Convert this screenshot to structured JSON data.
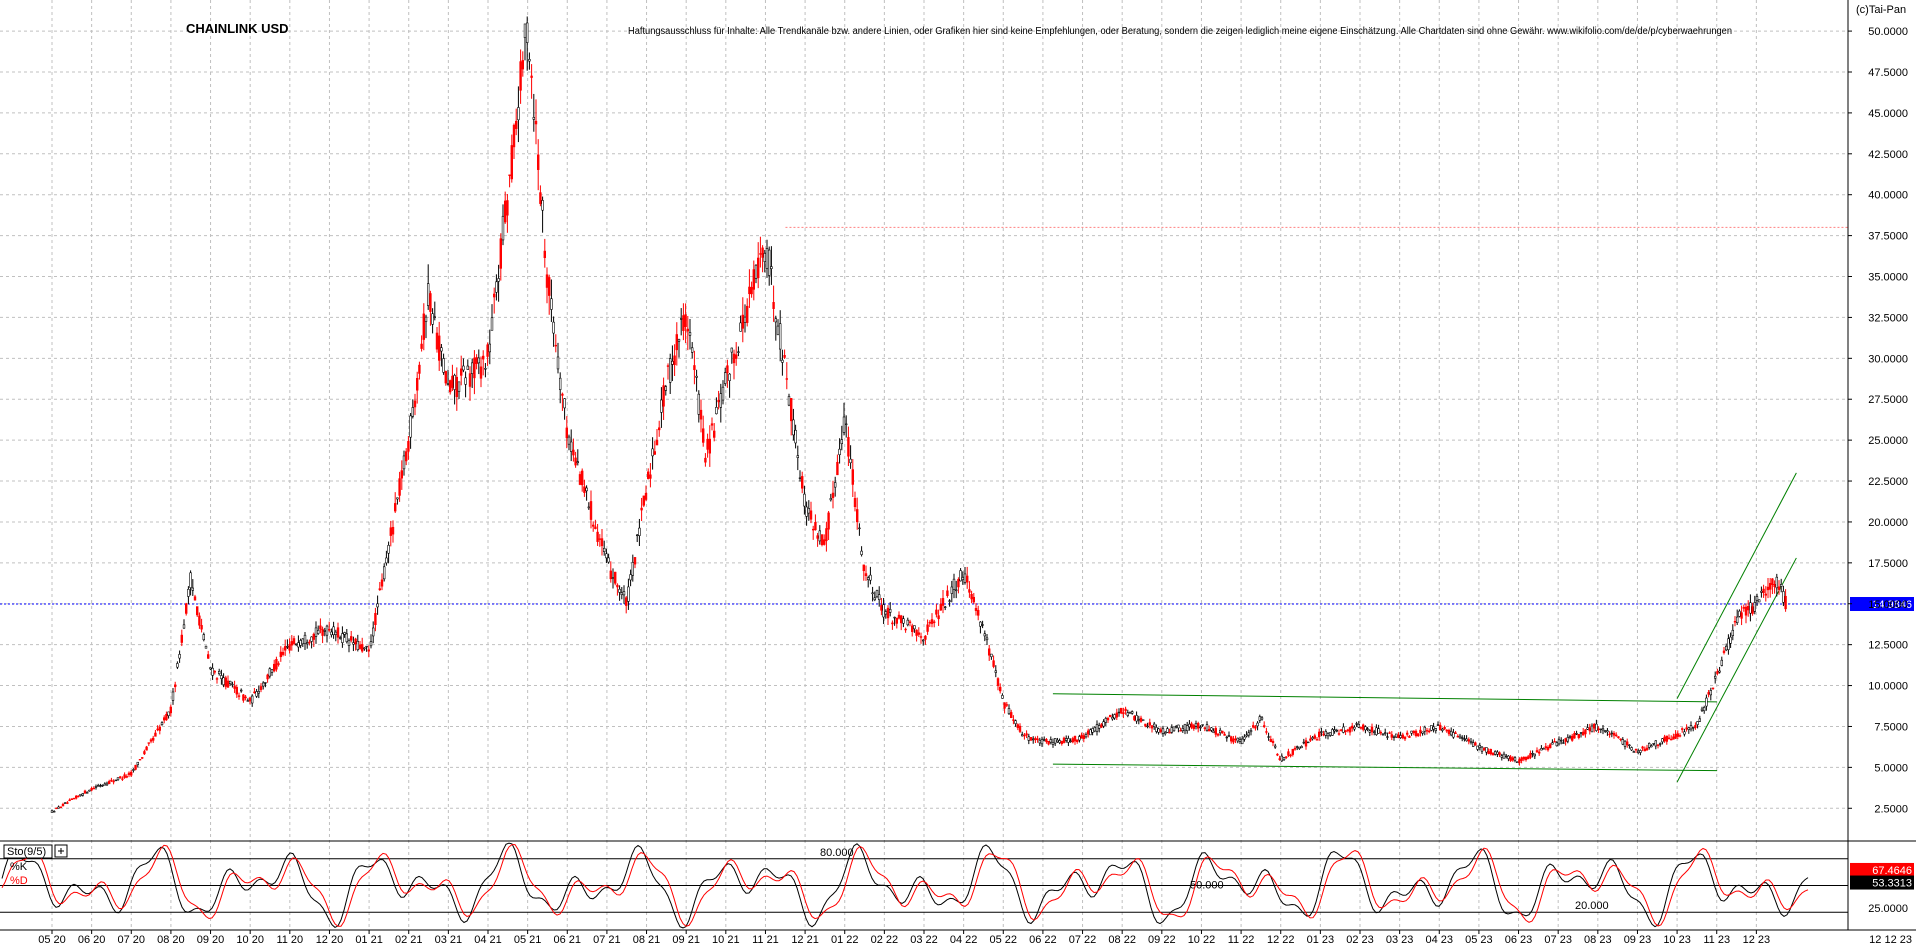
{
  "title": "CHAINLINK USD",
  "disclaimer": "Haftungsausschluss für Inhalte: Alle Trendkanäle bzw. andere Linien, oder Grafiken hier sind keine Empfehlungen, oder Beratung, sondern die zeigen lediglich meine eigene Einschätzung. Alle Chartdaten sind ohne Gewähr.  www.wikifolio.com/de/de/p/cyberwaehrungen",
  "copyright": "(c)Tai-Pan",
  "colors": {
    "up": "#000000",
    "down": "#ff0000",
    "grid": "#c0c0c0",
    "current_line": "#0000ff",
    "resistance_line": "#ff8080",
    "channel": "#008000",
    "k_line": "#000000",
    "d_line": "#ff0000",
    "price_badge_bg": "#0000ff",
    "k_badge_bg": "#ff0000",
    "d_badge_bg": "#000000"
  },
  "chart_data": [
    {
      "type": "candlestick",
      "title": "CHAINLINK USD",
      "y_ticks": [
        "2.5000",
        "5.0000",
        "7.5000",
        "10.0000",
        "12.5000",
        "15.0000",
        "17.5000",
        "20.0000",
        "22.5000",
        "25.0000",
        "27.5000",
        "30.0000",
        "32.5000",
        "35.0000",
        "37.5000",
        "40.0000",
        "42.5000",
        "45.0000",
        "47.5000",
        "50.0000"
      ],
      "ylim": [
        0.5,
        51.9
      ],
      "x_tick_labels": [
        "05 20",
        "06 20",
        "07 20",
        "08 20",
        "09 20",
        "10 20",
        "11 20",
        "12 20",
        "01 21",
        "02 21",
        "03 21",
        "04 21",
        "05 21",
        "06 21",
        "07 21",
        "08 21",
        "09 21",
        "10 21",
        "11 21",
        "12 21",
        "01 22",
        "02 22",
        "03 22",
        "04 22",
        "05 22",
        "06 22",
        "07 22",
        "08 22",
        "09 22",
        "10 22",
        "11 22",
        "12 22",
        "01 23",
        "02 23",
        "03 23",
        "04 23",
        "05 23",
        "06 23",
        "07 23",
        "08 23",
        "09 23",
        "10 23",
        "11 23",
        "12 23"
      ],
      "x_end_label": "12 12 23",
      "current_price": 14.9846,
      "current_price_label": "14.9846",
      "resistance_level": 38.0,
      "price_path": [
        [
          "05 20",
          2.3
        ],
        [
          "06 20",
          3.7
        ],
        [
          "07 20",
          4.6
        ],
        [
          "08 20",
          8.5
        ],
        [
          "08 20",
          16.5
        ],
        [
          "09 20",
          11.0
        ],
        [
          "10 20",
          9.0
        ],
        [
          "11 20",
          12.5
        ],
        [
          "12 20",
          13.5
        ],
        [
          "01 21",
          12.0
        ],
        [
          "02 21",
          25.0
        ],
        [
          "02 21",
          34.0
        ],
        [
          "03 21",
          28.0
        ],
        [
          "04 21",
          30.0
        ],
        [
          "04 21",
          40.0
        ],
        [
          "05 21",
          50.5
        ],
        [
          "05 21",
          35.0
        ],
        [
          "06 21",
          25.5
        ],
        [
          "07 21",
          17.5
        ],
        [
          "07 21",
          15.0
        ],
        [
          "08 21",
          22.0
        ],
        [
          "08 21",
          28.5
        ],
        [
          "09 21",
          33.0
        ],
        [
          "09 21",
          24.0
        ],
        [
          "10 21",
          28.5
        ],
        [
          "11 21",
          37.0
        ],
        [
          "11 21",
          29.5
        ],
        [
          "12 21",
          21.0
        ],
        [
          "12 21",
          18.5
        ],
        [
          "01 22",
          26.5
        ],
        [
          "01 22",
          17.0
        ],
        [
          "02 22",
          14.5
        ],
        [
          "03 22",
          13.0
        ],
        [
          "04 22",
          17.0
        ],
        [
          "04 22",
          13.5
        ],
        [
          "05 22",
          9.0
        ],
        [
          "05 22",
          7.0
        ],
        [
          "06 22",
          6.5
        ],
        [
          "07 22",
          6.8
        ],
        [
          "08 22",
          8.5
        ],
        [
          "09 22",
          7.2
        ],
        [
          "10 22",
          7.6
        ],
        [
          "11 22",
          6.5
        ],
        [
          "11 22",
          8.0
        ],
        [
          "12 22",
          5.5
        ],
        [
          "01 23",
          7.0
        ],
        [
          "02 23",
          7.5
        ],
        [
          "03 23",
          6.8
        ],
        [
          "04 23",
          7.5
        ],
        [
          "05 23",
          6.2
        ],
        [
          "06 23",
          5.4
        ],
        [
          "07 23",
          6.5
        ],
        [
          "08 23",
          7.5
        ],
        [
          "09 23",
          6.0
        ],
        [
          "10 23",
          7.0
        ],
        [
          "10 23",
          7.6
        ],
        [
          "11 23",
          10.5
        ],
        [
          "11 23",
          14.0
        ],
        [
          "12 23",
          15.0
        ],
        [
          "12 23",
          16.5
        ],
        [
          "12 12 23",
          14.98
        ]
      ],
      "annotations": {
        "range_channel": {
          "upper": [
            [
              "06 22",
              9.5
            ],
            [
              "10 23",
              9.0
            ]
          ],
          "lower": [
            [
              "06 22",
              5.2
            ],
            [
              "10 23",
              4.8
            ]
          ]
        },
        "rising_channel": {
          "upper": [
            [
              "10 23",
              9.2
            ],
            [
              "12 12 23",
              23.0
            ]
          ],
          "lower": [
            [
              "10 23",
              4.1
            ],
            [
              "12 12 23",
              17.8
            ]
          ]
        }
      }
    },
    {
      "type": "line",
      "title": "Sto(9/5)",
      "series": [
        {
          "name": "%K",
          "last": 67.4646,
          "last_label": "67.4646"
        },
        {
          "name": "%D",
          "last": 53.3313,
          "last_label": "53.3313"
        }
      ],
      "ylim": [
        0,
        100
      ],
      "levels": [
        {
          "value": 80,
          "label": "80.000"
        },
        {
          "value": 50,
          "label": "50.000"
        },
        {
          "value": 20,
          "label": "20.000"
        }
      ],
      "y_ticks": [
        "25.0000"
      ]
    }
  ]
}
